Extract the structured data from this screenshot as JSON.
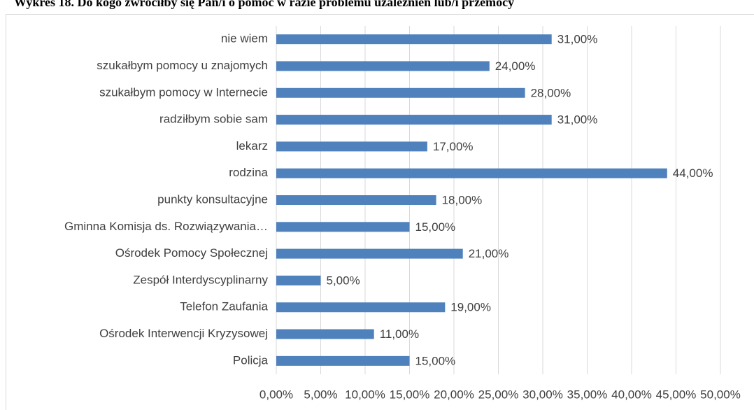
{
  "chart_data": {
    "type": "hbar",
    "title": "Wykres 18. Do kogo zwróciłby się Pan/i o pomoc w razie problemu  uzależnień lub/i przemocy",
    "categories": [
      "nie wiem",
      "szukałbym pomocy u znajomych",
      "szukałbym pomocy w Internecie",
      "radziłbym sobie sam",
      "lekarz",
      "rodzina",
      "punkty konsultacyjne",
      "Gminna Komisja ds. Rozwiązywania…",
      "Ośrodek Pomocy Społecznej",
      "Zespół Interdyscyplinarny",
      "Telefon Zaufania",
      "Ośrodek Interwencji Kryzysowej",
      "Policja"
    ],
    "values": [
      31,
      24,
      28,
      31,
      17,
      44,
      18,
      15,
      21,
      5,
      19,
      11,
      15
    ],
    "value_labels": [
      "31,00%",
      "24,00%",
      "28,00%",
      "31,00%",
      "17,00%",
      "44,00%",
      "18,00%",
      "15,00%",
      "21,00%",
      "5,00%",
      "19,00%",
      "11,00%",
      "15,00%"
    ],
    "color": "#4f81bd",
    "xlim": [
      0,
      50
    ],
    "xticks": [
      {
        "value": 0,
        "label": "0,00%"
      },
      {
        "value": 5,
        "label": "5,00%"
      },
      {
        "value": 10,
        "label": "10,00%"
      },
      {
        "value": 15,
        "label": "15,00%"
      },
      {
        "value": 20,
        "label": "20,00%"
      },
      {
        "value": 25,
        "label": "25,00%"
      },
      {
        "value": 30,
        "label": "30,00%"
      },
      {
        "value": 35,
        "label": "35,00%"
      },
      {
        "value": 40,
        "label": "40,00%"
      },
      {
        "value": 45,
        "label": "45,00%"
      },
      {
        "value": 50,
        "label": "50,00%"
      }
    ],
    "grid": true
  }
}
